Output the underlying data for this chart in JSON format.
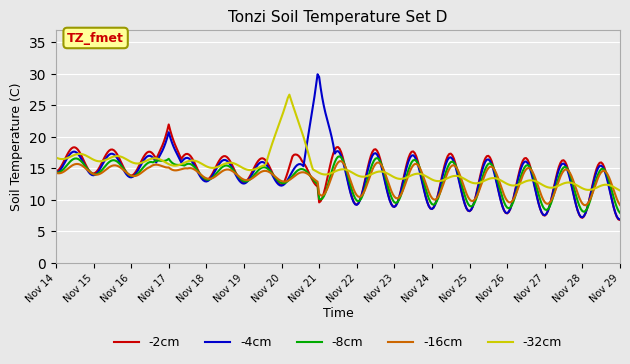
{
  "title": "Tonzi Soil Temperature Set D",
  "xlabel": "Time",
  "ylabel": "Soil Temperature (C)",
  "ylim": [
    0,
    37
  ],
  "yticks": [
    0,
    5,
    10,
    15,
    20,
    25,
    30,
    35
  ],
  "background_color": "#e8e8e8",
  "plot_bg_color": "#e8e8e8",
  "legend_label": "TZ_fmet",
  "legend_box_color": "#ffff99",
  "legend_box_edgecolor": "#999900",
  "series_order": [
    "-2cm",
    "-4cm",
    "-8cm",
    "-16cm",
    "-32cm"
  ],
  "series": {
    "-2cm": {
      "color": "#cc0000",
      "lw": 1.5
    },
    "-4cm": {
      "color": "#0000cc",
      "lw": 1.5
    },
    "-8cm": {
      "color": "#00aa00",
      "lw": 1.5
    },
    "-16cm": {
      "color": "#cc6600",
      "lw": 1.5
    },
    "-32cm": {
      "color": "#cccc00",
      "lw": 1.5
    }
  },
  "num_days": 15,
  "points_per_day": 24,
  "xtick_labels": [
    "Nov 14",
    "Nov 15",
    "Nov 16",
    "Nov 17",
    "Nov 18",
    "Nov 19",
    "Nov 20",
    "Nov 21",
    "Nov 22",
    "Nov 23",
    "Nov 24",
    "Nov 25",
    "Nov 26",
    "Nov 27",
    "Nov 28",
    "Nov 29"
  ]
}
